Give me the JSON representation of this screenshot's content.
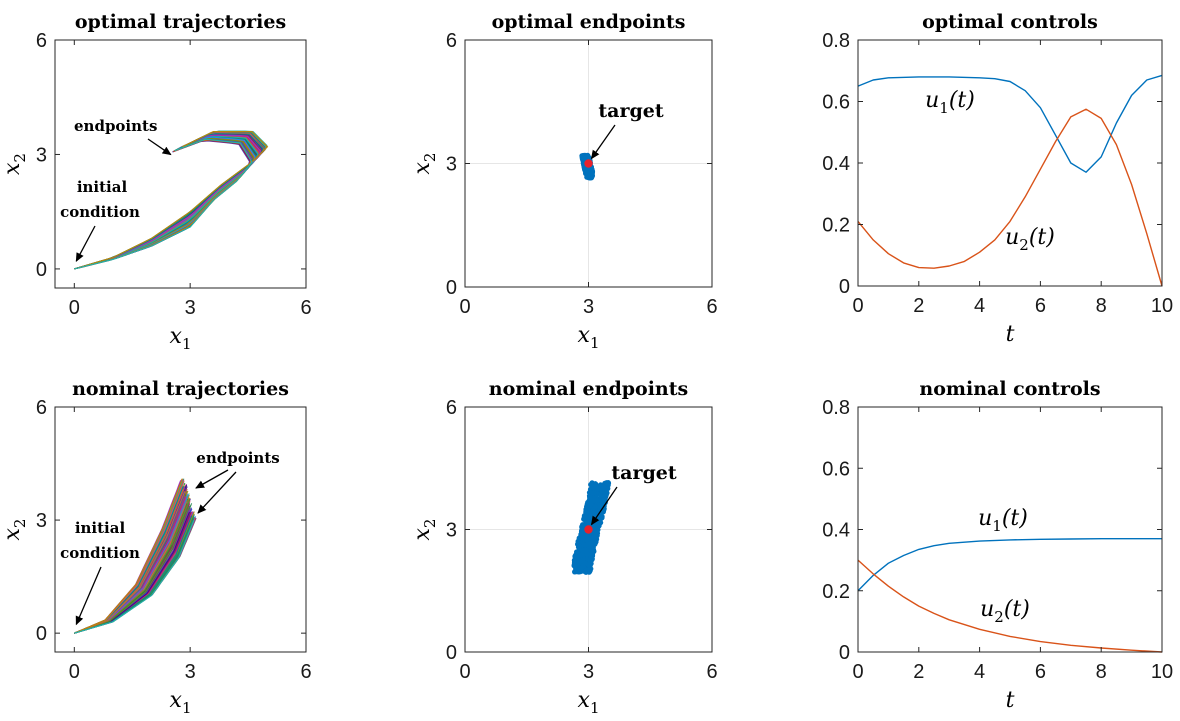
{
  "chart_data": [
    {
      "id": "optimal-trajectories",
      "type": "line",
      "title": "optimal trajectories",
      "xlabel": "x1",
      "ylabel": "x2",
      "xlim": [
        -0.5,
        6
      ],
      "ylim": [
        -0.5,
        6
      ],
      "xticks": [
        0,
        3,
        6
      ],
      "yticks": [
        0,
        3,
        6
      ],
      "grid": false,
      "series": [
        {
          "x": [
            0,
            1,
            2,
            3,
            3.8,
            4.6,
            5.0,
            4.6,
            3.6,
            2.8
          ],
          "y": [
            0,
            0.3,
            0.8,
            1.5,
            2.2,
            2.8,
            3.2,
            3.6,
            3.6,
            3.2
          ]
        },
        {
          "x": [
            0,
            1,
            2,
            3,
            3.6,
            4.2,
            4.6,
            4.3,
            3.4,
            2.6
          ],
          "y": [
            0,
            0.25,
            0.6,
            1.1,
            1.8,
            2.3,
            2.8,
            3.3,
            3.4,
            3.1
          ]
        }
      ],
      "annotations": [
        {
          "text": "endpoints",
          "points_to": [
            2.6,
            3.05
          ]
        },
        {
          "text": "initial",
          "points_to": [
            0,
            0.1
          ]
        },
        {
          "text": "condition",
          "points_to": [
            0,
            0.1
          ]
        }
      ]
    },
    {
      "id": "optimal-endpoints",
      "type": "scatter",
      "title": "optimal endpoints",
      "xlabel": "x1",
      "ylabel": "x2",
      "xlim": [
        0,
        6
      ],
      "ylim": [
        0,
        6
      ],
      "xticks": [
        0,
        3,
        6
      ],
      "yticks": [
        0,
        3,
        6
      ],
      "grid": true,
      "cloud": {
        "center": [
          2.98,
          2.95
        ],
        "x_range": [
          2.8,
          3.15
        ],
        "y_range": [
          2.65,
          3.2
        ]
      },
      "target": [
        3,
        3
      ],
      "annotations": [
        {
          "text": "target",
          "points_to": [
            3,
            3
          ]
        }
      ]
    },
    {
      "id": "optimal-controls",
      "type": "line",
      "title": "optimal controls",
      "xlabel": "t",
      "ylabel": "",
      "xlim": [
        0,
        10
      ],
      "ylim": [
        0,
        0.8
      ],
      "xticks": [
        0,
        2,
        4,
        6,
        8,
        10
      ],
      "yticks": [
        0,
        0.2,
        0.4,
        0.6,
        0.8
      ],
      "grid": false,
      "series": [
        {
          "name": "u1(t)",
          "color": "#0072BD",
          "x": [
            0,
            0.5,
            1,
            2,
            3,
            4,
            4.5,
            5,
            5.5,
            6,
            6.5,
            7,
            7.5,
            8,
            8.5,
            9,
            9.5,
            10
          ],
          "y": [
            0.65,
            0.67,
            0.677,
            0.68,
            0.68,
            0.677,
            0.674,
            0.665,
            0.635,
            0.58,
            0.49,
            0.4,
            0.37,
            0.42,
            0.53,
            0.62,
            0.67,
            0.685
          ]
        },
        {
          "name": "u2(t)",
          "color": "#D95319",
          "x": [
            0,
            0.5,
            1,
            1.5,
            2,
            2.5,
            3,
            3.5,
            4,
            4.5,
            5,
            5.5,
            6,
            6.5,
            7,
            7.5,
            8,
            8.5,
            9,
            9.5,
            10
          ],
          "y": [
            0.21,
            0.15,
            0.105,
            0.075,
            0.06,
            0.058,
            0.065,
            0.08,
            0.11,
            0.15,
            0.21,
            0.29,
            0.38,
            0.47,
            0.55,
            0.575,
            0.545,
            0.46,
            0.33,
            0.17,
            0.0
          ]
        }
      ]
    },
    {
      "id": "nominal-trajectories",
      "type": "line",
      "title": "nominal trajectories",
      "xlabel": "x1",
      "ylabel": "x2",
      "xlim": [
        -0.5,
        6
      ],
      "ylim": [
        -0.5,
        6
      ],
      "xticks": [
        0,
        3,
        6
      ],
      "yticks": [
        0,
        3,
        6
      ],
      "grid": false,
      "series": [
        {
          "x": [
            0,
            0.8,
            1.6,
            2.3,
            2.8
          ],
          "y": [
            0,
            0.35,
            1.3,
            2.8,
            4.1
          ]
        },
        {
          "x": [
            0,
            1,
            2,
            2.7,
            3.1
          ],
          "y": [
            0,
            0.3,
            1.0,
            2.0,
            3.0
          ]
        }
      ],
      "annotations": [
        {
          "text": "endpoints",
          "points_to": [
            3.0,
            3.3
          ]
        },
        {
          "text": "initial",
          "points_to": [
            0,
            0.1
          ]
        },
        {
          "text": "condition",
          "points_to": [
            0,
            0.1
          ]
        }
      ]
    },
    {
      "id": "nominal-endpoints",
      "type": "scatter",
      "title": "nominal endpoints",
      "xlabel": "x1",
      "ylabel": "x2",
      "xlim": [
        0,
        6
      ],
      "ylim": [
        0,
        6
      ],
      "xticks": [
        0,
        3,
        6
      ],
      "yticks": [
        0,
        3,
        6
      ],
      "grid": true,
      "cloud": {
        "center": [
          2.9,
          3.1
        ],
        "x_range": [
          2.6,
          3.4
        ],
        "y_range": [
          1.95,
          4.15
        ]
      },
      "target": [
        3,
        3
      ],
      "annotations": [
        {
          "text": "target",
          "points_to": [
            3,
            3
          ]
        }
      ]
    },
    {
      "id": "nominal-controls",
      "type": "line",
      "title": "nominal controls",
      "xlabel": "t",
      "ylabel": "",
      "xlim": [
        0,
        10
      ],
      "ylim": [
        0,
        0.8
      ],
      "xticks": [
        0,
        2,
        4,
        6,
        8,
        10
      ],
      "yticks": [
        0,
        0.2,
        0.4,
        0.6,
        0.8
      ],
      "grid": false,
      "series": [
        {
          "name": "u1(t)",
          "color": "#0072BD",
          "x": [
            0,
            0.5,
            1,
            1.5,
            2,
            2.5,
            3,
            4,
            5,
            6,
            7,
            8,
            9,
            10
          ],
          "y": [
            0.2,
            0.25,
            0.29,
            0.315,
            0.335,
            0.347,
            0.355,
            0.362,
            0.366,
            0.368,
            0.369,
            0.37,
            0.37,
            0.37
          ]
        },
        {
          "name": "u2(t)",
          "color": "#D95319",
          "x": [
            0,
            0.5,
            1,
            1.5,
            2,
            2.5,
            3,
            4,
            5,
            6,
            7,
            8,
            9,
            10
          ],
          "y": [
            0.3,
            0.255,
            0.215,
            0.18,
            0.15,
            0.126,
            0.105,
            0.074,
            0.051,
            0.034,
            0.022,
            0.013,
            0.006,
            0.0
          ]
        }
      ]
    }
  ]
}
